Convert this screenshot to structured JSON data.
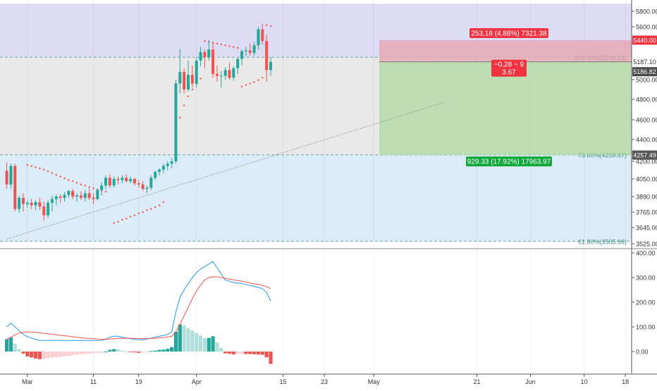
{
  "chart_data": {
    "type": "candlestick",
    "price_panel": {
      "y_ticks": [
        "5800.00",
        "5600.00",
        "5000.00",
        "4800.00",
        "4600.00",
        "4400.00",
        "4200.00",
        "4050.00",
        "3890.00",
        "3765.00",
        "3645.00",
        "3525.00"
      ],
      "y_tick_values": [
        5800,
        5600,
        5000,
        4800,
        4600,
        4400,
        4200,
        4050,
        3890,
        3765,
        3645,
        3525
      ],
      "price_badges": {
        "target": "5440.00",
        "current": "5187.10",
        "current_secondary": "5186.82",
        "stop": "4257.49"
      },
      "fib_levels": [
        {
          "label": "100.00%(5239.22)",
          "value": 5239.22
        },
        {
          "label": "78.60%(4259.87)",
          "value": 4259.87
        },
        {
          "label": "61.80%(3505.96)",
          "value": 3505.96
        }
      ],
      "zones": [
        {
          "name": "upper",
          "from": 5239.22,
          "to": 5900,
          "color": "#dcdcf5"
        },
        {
          "name": "middle",
          "from": 4259.87,
          "to": 5239.22,
          "color": "#e9e9e9"
        },
        {
          "name": "lower",
          "from": 3505.96,
          "to": 4259.87,
          "color": "#dbebf7"
        }
      ],
      "position_tool": {
        "entry": 5187.1,
        "target": 5440.0,
        "stop": 4257.49,
        "profit_label": "253.18 (4.88%) 7321.38",
        "risk_label": "929.33 (17.92%) 17963.97",
        "ratio_lines": [
          "~0.28 ~ 9",
          "3.67"
        ]
      },
      "trendline": {
        "start_day": 0,
        "start_price": 3560,
        "end_day": 106,
        "end_price": 4770
      },
      "candles": [
        {
          "o": 4120,
          "h": 4190,
          "l": 3960,
          "c": 4000
        },
        {
          "o": 4000,
          "h": 4180,
          "l": 3960,
          "c": 4160
        },
        {
          "o": 4160,
          "h": 4180,
          "l": 3770,
          "c": 3790
        },
        {
          "o": 3790,
          "h": 3900,
          "l": 3760,
          "c": 3880
        },
        {
          "o": 3880,
          "h": 3920,
          "l": 3770,
          "c": 3830
        },
        {
          "o": 3830,
          "h": 3860,
          "l": 3800,
          "c": 3840
        },
        {
          "o": 3840,
          "h": 3870,
          "l": 3790,
          "c": 3820
        },
        {
          "o": 3820,
          "h": 3860,
          "l": 3780,
          "c": 3845
        },
        {
          "o": 3845,
          "h": 3880,
          "l": 3780,
          "c": 3810
        },
        {
          "o": 3810,
          "h": 3850,
          "l": 3700,
          "c": 3740
        },
        {
          "o": 3740,
          "h": 3860,
          "l": 3720,
          "c": 3840
        },
        {
          "o": 3840,
          "h": 3900,
          "l": 3770,
          "c": 3870
        },
        {
          "o": 3870,
          "h": 3910,
          "l": 3820,
          "c": 3890
        },
        {
          "o": 3890,
          "h": 3910,
          "l": 3840,
          "c": 3880
        },
        {
          "o": 3880,
          "h": 3930,
          "l": 3850,
          "c": 3905
        },
        {
          "o": 3905,
          "h": 3950,
          "l": 3880,
          "c": 3940
        },
        {
          "o": 3940,
          "h": 3960,
          "l": 3870,
          "c": 3890
        },
        {
          "o": 3890,
          "h": 3920,
          "l": 3850,
          "c": 3900
        },
        {
          "o": 3900,
          "h": 3940,
          "l": 3860,
          "c": 3880
        },
        {
          "o": 3880,
          "h": 3950,
          "l": 3850,
          "c": 3920
        },
        {
          "o": 3920,
          "h": 3960,
          "l": 3860,
          "c": 3880
        },
        {
          "o": 3880,
          "h": 3920,
          "l": 3830,
          "c": 3870
        },
        {
          "o": 3870,
          "h": 3960,
          "l": 3860,
          "c": 3950
        },
        {
          "o": 3950,
          "h": 4020,
          "l": 3900,
          "c": 3990
        },
        {
          "o": 3990,
          "h": 4080,
          "l": 3960,
          "c": 4060
        },
        {
          "o": 4060,
          "h": 4090,
          "l": 3970,
          "c": 3990
        },
        {
          "o": 3990,
          "h": 4070,
          "l": 3970,
          "c": 4050
        },
        {
          "o": 4050,
          "h": 4070,
          "l": 4000,
          "c": 4040
        },
        {
          "o": 4040,
          "h": 4080,
          "l": 4010,
          "c": 4060
        },
        {
          "o": 4060,
          "h": 4090,
          "l": 4020,
          "c": 4030
        },
        {
          "o": 4030,
          "h": 4070,
          "l": 4010,
          "c": 4050
        },
        {
          "o": 4050,
          "h": 4060,
          "l": 3990,
          "c": 4010
        },
        {
          "o": 4010,
          "h": 4040,
          "l": 3970,
          "c": 4000
        },
        {
          "o": 4000,
          "h": 4030,
          "l": 3940,
          "c": 3960
        },
        {
          "o": 3960,
          "h": 3990,
          "l": 3920,
          "c": 3970
        },
        {
          "o": 3970,
          "h": 4080,
          "l": 3950,
          "c": 4060
        },
        {
          "o": 4060,
          "h": 4120,
          "l": 4040,
          "c": 4110
        },
        {
          "o": 4110,
          "h": 4140,
          "l": 4080,
          "c": 4130
        },
        {
          "o": 4130,
          "h": 4180,
          "l": 4100,
          "c": 4160
        },
        {
          "o": 4160,
          "h": 4200,
          "l": 4120,
          "c": 4180
        },
        {
          "o": 4180,
          "h": 4230,
          "l": 4140,
          "c": 4200
        },
        {
          "o": 4200,
          "h": 5000,
          "l": 4180,
          "c": 4960
        },
        {
          "o": 4960,
          "h": 5340,
          "l": 4860,
          "c": 5080
        },
        {
          "o": 5080,
          "h": 5120,
          "l": 4860,
          "c": 4900
        },
        {
          "o": 4900,
          "h": 5200,
          "l": 4880,
          "c": 5050
        },
        {
          "o": 5050,
          "h": 5150,
          "l": 4920,
          "c": 4960
        },
        {
          "o": 4960,
          "h": 5240,
          "l": 4920,
          "c": 5200
        },
        {
          "o": 5200,
          "h": 5360,
          "l": 5140,
          "c": 5300
        },
        {
          "o": 5300,
          "h": 5330,
          "l": 5120,
          "c": 5240
        },
        {
          "o": 5240,
          "h": 5440,
          "l": 5200,
          "c": 5330
        },
        {
          "o": 5330,
          "h": 5420,
          "l": 5020,
          "c": 5060
        },
        {
          "o": 5060,
          "h": 5150,
          "l": 4980,
          "c": 5040
        },
        {
          "o": 5040,
          "h": 5090,
          "l": 4920,
          "c": 5040
        },
        {
          "o": 5040,
          "h": 5130,
          "l": 5000,
          "c": 5100
        },
        {
          "o": 5100,
          "h": 5180,
          "l": 5000,
          "c": 5020
        },
        {
          "o": 5020,
          "h": 5140,
          "l": 4990,
          "c": 5120
        },
        {
          "o": 5120,
          "h": 5230,
          "l": 5060,
          "c": 5220
        },
        {
          "o": 5220,
          "h": 5330,
          "l": 5150,
          "c": 5310
        },
        {
          "o": 5310,
          "h": 5360,
          "l": 5250,
          "c": 5320
        },
        {
          "o": 5320,
          "h": 5400,
          "l": 5260,
          "c": 5290
        },
        {
          "o": 5290,
          "h": 5420,
          "l": 5260,
          "c": 5380
        },
        {
          "o": 5380,
          "h": 5600,
          "l": 5330,
          "c": 5570
        },
        {
          "o": 5570,
          "h": 5640,
          "l": 5390,
          "c": 5430
        },
        {
          "o": 5430,
          "h": 5500,
          "l": 4980,
          "c": 5100
        },
        {
          "o": 5100,
          "h": 5240,
          "l": 5040,
          "c": 5187
        }
      ],
      "sar_dots": [
        [
          5,
          4170
        ],
        [
          6,
          4160
        ],
        [
          7,
          4150
        ],
        [
          8,
          4140
        ],
        [
          9,
          4130
        ],
        [
          10,
          4115
        ],
        [
          11,
          4100
        ],
        [
          12,
          4085
        ],
        [
          13,
          4070
        ],
        [
          14,
          4055
        ],
        [
          15,
          4040
        ],
        [
          16,
          4030
        ],
        [
          17,
          4015
        ],
        [
          18,
          4000
        ],
        [
          19,
          3990
        ],
        [
          20,
          3975
        ],
        [
          21,
          3965
        ],
        [
          22,
          3955
        ],
        [
          23,
          3945
        ],
        [
          24,
          3935
        ],
        [
          26,
          3680
        ],
        [
          27,
          3690
        ],
        [
          28,
          3705
        ],
        [
          29,
          3715
        ],
        [
          30,
          3730
        ],
        [
          31,
          3740
        ],
        [
          32,
          3755
        ],
        [
          33,
          3765
        ],
        [
          34,
          3780
        ],
        [
          35,
          3790
        ],
        [
          36,
          3805
        ],
        [
          37,
          3820
        ],
        [
          38,
          3845
        ],
        [
          42,
          4620
        ],
        [
          43,
          4740
        ],
        [
          44,
          4830
        ],
        [
          45,
          4900
        ],
        [
          46,
          4960
        ],
        [
          47,
          5010
        ],
        [
          48,
          5430
        ],
        [
          49,
          5420
        ],
        [
          50,
          5410
        ],
        [
          51,
          5400
        ],
        [
          52,
          5390
        ],
        [
          53,
          5380
        ],
        [
          54,
          5370
        ],
        [
          55,
          5360
        ],
        [
          56,
          5350
        ],
        [
          57,
          4930
        ],
        [
          58,
          4945
        ],
        [
          59,
          4960
        ],
        [
          60,
          4975
        ],
        [
          61,
          4995
        ],
        [
          62,
          5020
        ],
        [
          63,
          5620
        ],
        [
          64,
          5610
        ]
      ]
    },
    "macd_panel": {
      "y_ticks": [
        "400.00",
        "300.00",
        "200.00",
        "100.00",
        "0.00"
      ],
      "y_tick_values": [
        400,
        300,
        200,
        100,
        0
      ],
      "macd": [
        100,
        115,
        100,
        85,
        70,
        60,
        55,
        50,
        45,
        45,
        45,
        45,
        45,
        45,
        45,
        45,
        45,
        45,
        45,
        45,
        45,
        45,
        45,
        45,
        50,
        58,
        62,
        62,
        58,
        55,
        52,
        50,
        48,
        48,
        50,
        55,
        58,
        62,
        65,
        70,
        80,
        160,
        220,
        250,
        275,
        300,
        320,
        335,
        345,
        355,
        365,
        340,
        315,
        290,
        285,
        280,
        278,
        276,
        272,
        268,
        264,
        260,
        255,
        240,
        205
      ],
      "signal": [
        50,
        58,
        68,
        75,
        78,
        80,
        79,
        78,
        76,
        74,
        72,
        70,
        68,
        66,
        64,
        62,
        60,
        58,
        56,
        54,
        53,
        52,
        51,
        50,
        50,
        51,
        52,
        53,
        54,
        54,
        54,
        53,
        53,
        52,
        52,
        53,
        54,
        55,
        57,
        59,
        62,
        80,
        110,
        145,
        180,
        215,
        245,
        270,
        290,
        300,
        303,
        303,
        300,
        297,
        294,
        291,
        288,
        285,
        282,
        278,
        275,
        272,
        268,
        263,
        255
      ],
      "histogram": [
        50,
        57,
        32,
        10,
        -8,
        -20,
        -24,
        -28,
        -31,
        -29,
        -27,
        -25,
        -23,
        -21,
        -19,
        -17,
        -15,
        -13,
        -11,
        -9,
        -8,
        -7,
        -6,
        -5,
        0,
        7,
        10,
        9,
        4,
        1,
        -2,
        -3,
        -5,
        -4,
        -2,
        2,
        4,
        7,
        8,
        11,
        18,
        80,
        110,
        105,
        95,
        85,
        75,
        65,
        55,
        55,
        62,
        37,
        15,
        -7,
        -9,
        -11,
        -10,
        -9,
        -10,
        -10,
        -11,
        -12,
        -13,
        -23,
        -50
      ]
    },
    "x_axis": {
      "tick_labels": [
        "Mar",
        "11",
        "19",
        "Apr",
        "15",
        "23",
        "May",
        "21",
        "Jun",
        "10",
        "18"
      ],
      "tick_days": [
        5,
        21,
        32,
        46,
        67,
        77,
        89,
        114,
        127,
        140,
        150
      ]
    }
  }
}
